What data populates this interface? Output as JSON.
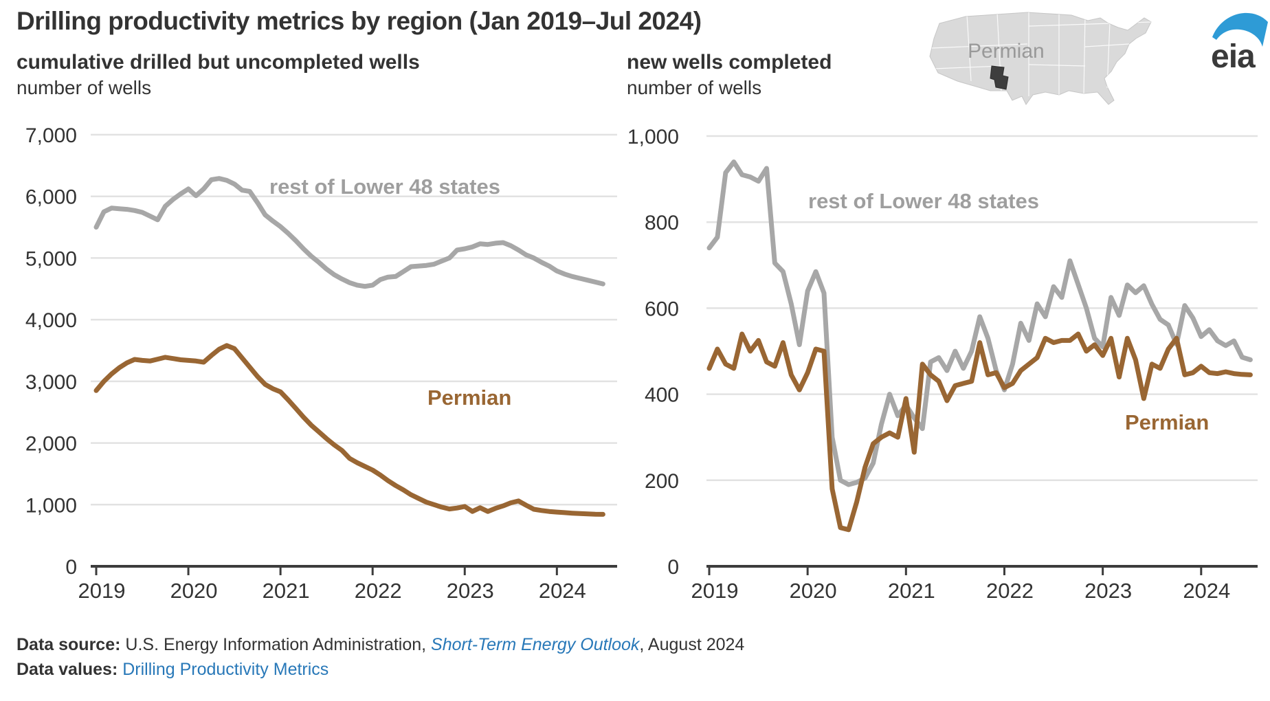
{
  "title": "Drilling productivity metrics by region (Jan 2019–Jul 2024)",
  "logo": {
    "text": "eia"
  },
  "map": {
    "label": "Permian"
  },
  "colors": {
    "gray_series": "#a7a7a7",
    "brown_series": "#996633",
    "grid": "#e2e2e2",
    "axis": "#3c3c3c",
    "text": "#333333",
    "label_gray": "#9e9e9e",
    "link_blue": "#2878b8",
    "logo_blue": "#2e9bd6",
    "map_gray": "#dadada",
    "map_region_dark": "#3e3e3e"
  },
  "footer": {
    "source_label": "Data source:",
    "source_text": " U.S. Energy Information Administration, ",
    "source_link": "Short-Term Energy Outlook",
    "source_suffix": ", August 2024",
    "values_label": "Data values:",
    "values_link": "Drilling Productivity Metrics"
  },
  "chart_data": [
    {
      "type": "line",
      "title": "cumulative drilled but uncompleted wells",
      "ylabel": "number of wells",
      "x_start": "Jan 2019",
      "x_end": "Jul 2024",
      "x_tick_labels": [
        "2019",
        "2020",
        "2021",
        "2022",
        "2023",
        "2024"
      ],
      "ylim": [
        0,
        7000
      ],
      "y_tick_labels": [
        "0",
        "1,000",
        "2,000",
        "3,000",
        "4,000",
        "5,000",
        "6,000",
        "7,000"
      ],
      "grid": "horizontal",
      "legend_position": "inline-labels",
      "series": [
        {
          "name": "rest of Lower 48 states",
          "color": "#a7a7a7",
          "values": [
            5500,
            5750,
            5810,
            5800,
            5790,
            5770,
            5740,
            5680,
            5620,
            5840,
            5950,
            6040,
            6120,
            6010,
            6120,
            6270,
            6290,
            6260,
            6200,
            6100,
            6080,
            5900,
            5700,
            5600,
            5510,
            5400,
            5280,
            5150,
            5030,
            4930,
            4820,
            4730,
            4660,
            4600,
            4560,
            4540,
            4560,
            4650,
            4690,
            4700,
            4780,
            4860,
            4870,
            4880,
            4900,
            4950,
            5000,
            5130,
            5150,
            5180,
            5230,
            5220,
            5240,
            5250,
            5200,
            5130,
            5050,
            5000,
            4930,
            4870,
            4790,
            4740,
            4700,
            4670,
            4640,
            4610,
            4580
          ]
        },
        {
          "name": "Permian",
          "color": "#996633",
          "values": [
            2850,
            3000,
            3120,
            3220,
            3300,
            3355,
            3340,
            3330,
            3360,
            3390,
            3370,
            3350,
            3340,
            3330,
            3310,
            3420,
            3520,
            3580,
            3530,
            3380,
            3230,
            3080,
            2950,
            2880,
            2830,
            2700,
            2560,
            2420,
            2290,
            2180,
            2070,
            1970,
            1880,
            1750,
            1680,
            1620,
            1560,
            1480,
            1390,
            1310,
            1240,
            1160,
            1100,
            1040,
            1000,
            960,
            930,
            945,
            970,
            890,
            950,
            890,
            940,
            980,
            1030,
            1060,
            990,
            925,
            905,
            890,
            880,
            870,
            862,
            855,
            850,
            845,
            843
          ]
        }
      ]
    },
    {
      "type": "line",
      "title": "new wells completed",
      "ylabel": "number of wells",
      "x_start": "Jan 2019",
      "x_end": "Jul 2024",
      "x_tick_labels": [
        "2019",
        "2020",
        "2021",
        "2022",
        "2023",
        "2024"
      ],
      "ylim": [
        0,
        1000
      ],
      "y_tick_labels": [
        "0",
        "200",
        "400",
        "600",
        "800",
        "1,000"
      ],
      "grid": "horizontal",
      "legend_position": "inline-labels",
      "series": [
        {
          "name": "rest of Lower 48 states",
          "color": "#a7a7a7",
          "values": [
            740,
            765,
            915,
            940,
            910,
            905,
            895,
            925,
            705,
            685,
            610,
            515,
            640,
            685,
            635,
            300,
            200,
            190,
            195,
            205,
            240,
            330,
            400,
            350,
            375,
            345,
            320,
            475,
            485,
            455,
            500,
            460,
            500,
            580,
            530,
            455,
            410,
            470,
            565,
            525,
            610,
            580,
            650,
            625,
            710,
            655,
            600,
            530,
            510,
            625,
            583,
            654,
            636,
            652,
            609,
            574,
            561,
            516,
            606,
            577,
            534,
            550,
            524,
            513,
            524,
            486,
            480
          ]
        },
        {
          "name": "Permian",
          "color": "#996633",
          "values": [
            460,
            505,
            470,
            460,
            540,
            500,
            525,
            475,
            465,
            520,
            445,
            410,
            450,
            505,
            500,
            180,
            90,
            85,
            150,
            230,
            285,
            300,
            310,
            300,
            390,
            265,
            470,
            445,
            430,
            385,
            420,
            425,
            430,
            520,
            445,
            450,
            415,
            425,
            455,
            470,
            485,
            530,
            520,
            525,
            525,
            540,
            500,
            515,
            490,
            530,
            440,
            530,
            480,
            390,
            470,
            460,
            505,
            530,
            445,
            450,
            465,
            450,
            448,
            452,
            448,
            446,
            445
          ]
        }
      ]
    }
  ]
}
